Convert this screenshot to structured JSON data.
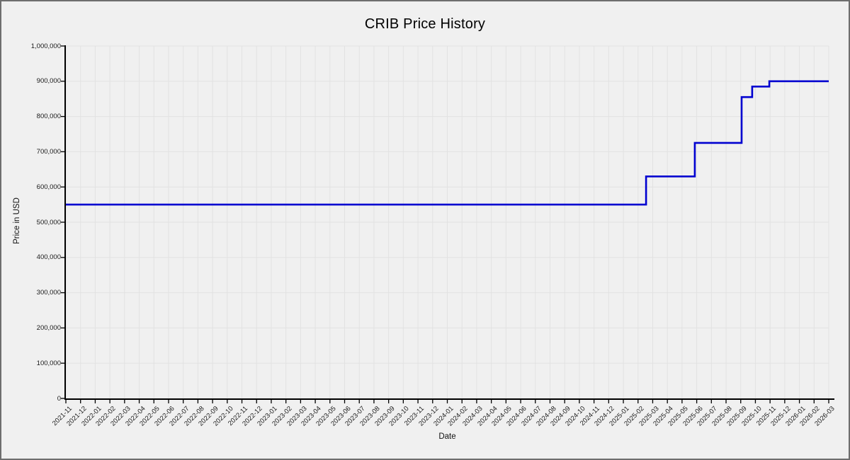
{
  "chart_data": {
    "type": "line",
    "line_style": "step",
    "title": "CRIB Price History",
    "xlabel": "Date",
    "ylabel": "Price in USD",
    "grid": true,
    "legend": "none",
    "ylim": [
      0,
      1000000
    ],
    "colors": {
      "background": "#f0f0f0",
      "grid": "#e2e2e2",
      "axis": "#000000",
      "line": "#0000d0",
      "text": "#1a1a1a",
      "border": "#6e6e6e"
    },
    "y_tick_labels": [
      "0",
      "100,000",
      "200,000",
      "300,000",
      "400,000",
      "500,000",
      "600,000",
      "700,000",
      "800,000",
      "900,000",
      "1,000,000"
    ],
    "x_tick_labels": [
      "2021-11",
      "2021-12",
      "2022-01",
      "2022-02",
      "2022-03",
      "2022-04",
      "2022-05",
      "2022-06",
      "2022-07",
      "2022-08",
      "2022-09",
      "2022-10",
      "2022-11",
      "2022-12",
      "2023-01",
      "2023-02",
      "2023-03",
      "2023-04",
      "2023-05",
      "2023-06",
      "2023-07",
      "2023-08",
      "2023-09",
      "2023-10",
      "2023-11",
      "2023-12",
      "2024-01",
      "2024-02",
      "2024-03",
      "2024-04",
      "2024-05",
      "2024-06",
      "2024-07",
      "2024-08",
      "2024-09",
      "2024-10",
      "2024-11",
      "2024-12",
      "2025-01",
      "2025-02",
      "2025-03",
      "2025-04",
      "2025-05",
      "2025-06",
      "2025-07",
      "2025-08",
      "2025-09",
      "2025-10",
      "2025-11",
      "2025-12",
      "2026-01",
      "2026-02",
      "2026-03"
    ],
    "steps": [
      {
        "from": "2021-11",
        "to": "2025-02",
        "price": 550000
      },
      {
        "from": "2025-02",
        "to": "2025-05",
        "price": 630000
      },
      {
        "from": "2025-05",
        "to": "2025-09",
        "price": 725000
      },
      {
        "from": "2025-09",
        "to": "2025-09",
        "price": 855000
      },
      {
        "from": "2025-09",
        "to": "2025-10",
        "price": 885000
      },
      {
        "from": "2025-10",
        "to": "2026-03",
        "price": 900000
      }
    ],
    "render_points": [
      {
        "x": 0,
        "price": 550000
      },
      {
        "x": 39.55,
        "price": 550000
      },
      {
        "x": 39.55,
        "price": 630000
      },
      {
        "x": 42.87,
        "price": 630000
      },
      {
        "x": 42.87,
        "price": 725000
      },
      {
        "x": 46.06,
        "price": 725000
      },
      {
        "x": 46.06,
        "price": 855000
      },
      {
        "x": 46.78,
        "price": 855000
      },
      {
        "x": 46.78,
        "price": 885000
      },
      {
        "x": 47.95,
        "price": 885000
      },
      {
        "x": 47.95,
        "price": 900000
      },
      {
        "x": 52,
        "price": 900000
      }
    ]
  }
}
